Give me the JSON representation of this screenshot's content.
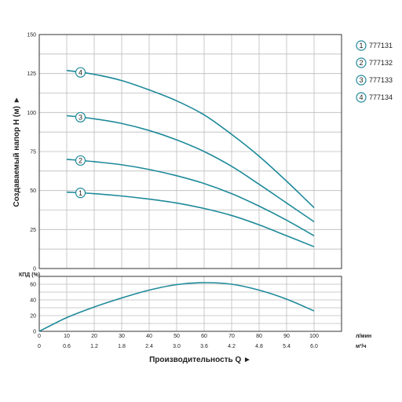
{
  "chart_data": [
    {
      "type": "line",
      "ylabel": "Создаваемый напор H (м) ►",
      "ylim": [
        0,
        150
      ],
      "yticks": [
        0,
        25,
        50,
        75,
        100,
        125,
        150
      ],
      "xlim": [
        0,
        110
      ],
      "grid": true,
      "legend_position": "right",
      "series": [
        {
          "name": "777131",
          "marker": "1",
          "x": [
            10,
            20,
            30,
            40,
            50,
            60,
            70,
            80,
            90,
            100
          ],
          "values": [
            49,
            48,
            46.5,
            44.5,
            42,
            38.5,
            34,
            28,
            21,
            14
          ]
        },
        {
          "name": "777132",
          "marker": "2",
          "x": [
            10,
            20,
            30,
            40,
            50,
            60,
            70,
            80,
            90,
            100
          ],
          "values": [
            70,
            68.5,
            66.5,
            63.5,
            59.5,
            54.5,
            48,
            40,
            31,
            21
          ]
        },
        {
          "name": "777133",
          "marker": "3",
          "x": [
            10,
            20,
            30,
            40,
            50,
            60,
            70,
            80,
            90,
            100
          ],
          "values": [
            98,
            96,
            93,
            88.5,
            82.5,
            75,
            65.5,
            54,
            42,
            30
          ]
        },
        {
          "name": "777134",
          "marker": "4",
          "x": [
            10,
            20,
            30,
            40,
            50,
            60,
            70,
            80,
            90,
            100
          ],
          "values": [
            127,
            124.5,
            120.5,
            114.5,
            107.5,
            98.5,
            86,
            72,
            56,
            39
          ]
        }
      ]
    },
    {
      "type": "line",
      "ylabel": "КПД (%)",
      "ylim": [
        0,
        70
      ],
      "yticks": [
        0,
        20,
        40,
        60
      ],
      "xlim": [
        0,
        110
      ],
      "grid": true,
      "xticks": [
        0,
        10,
        20,
        30,
        40,
        50,
        60,
        70,
        80,
        90,
        100
      ],
      "xticks2": [
        "0",
        "0.6",
        "1.2",
        "1.8",
        "2.4",
        "3.0",
        "3.6",
        "4.2",
        "4.8",
        "5.4",
        "6.0"
      ],
      "xunit": "л/мин",
      "xunit2": "м³/ч",
      "xlabel": "Производительность Q ►",
      "series": [
        {
          "name": "КПД",
          "x": [
            0,
            10,
            20,
            30,
            40,
            50,
            60,
            70,
            80,
            90,
            100
          ],
          "values": [
            0,
            17.5,
            31,
            42.5,
            52.5,
            59.5,
            62,
            60,
            52.5,
            41,
            26
          ]
        }
      ]
    }
  ],
  "colors": {
    "curve": "#1e8a9a",
    "grid": "#bcbcbc",
    "frame": "#333333"
  }
}
